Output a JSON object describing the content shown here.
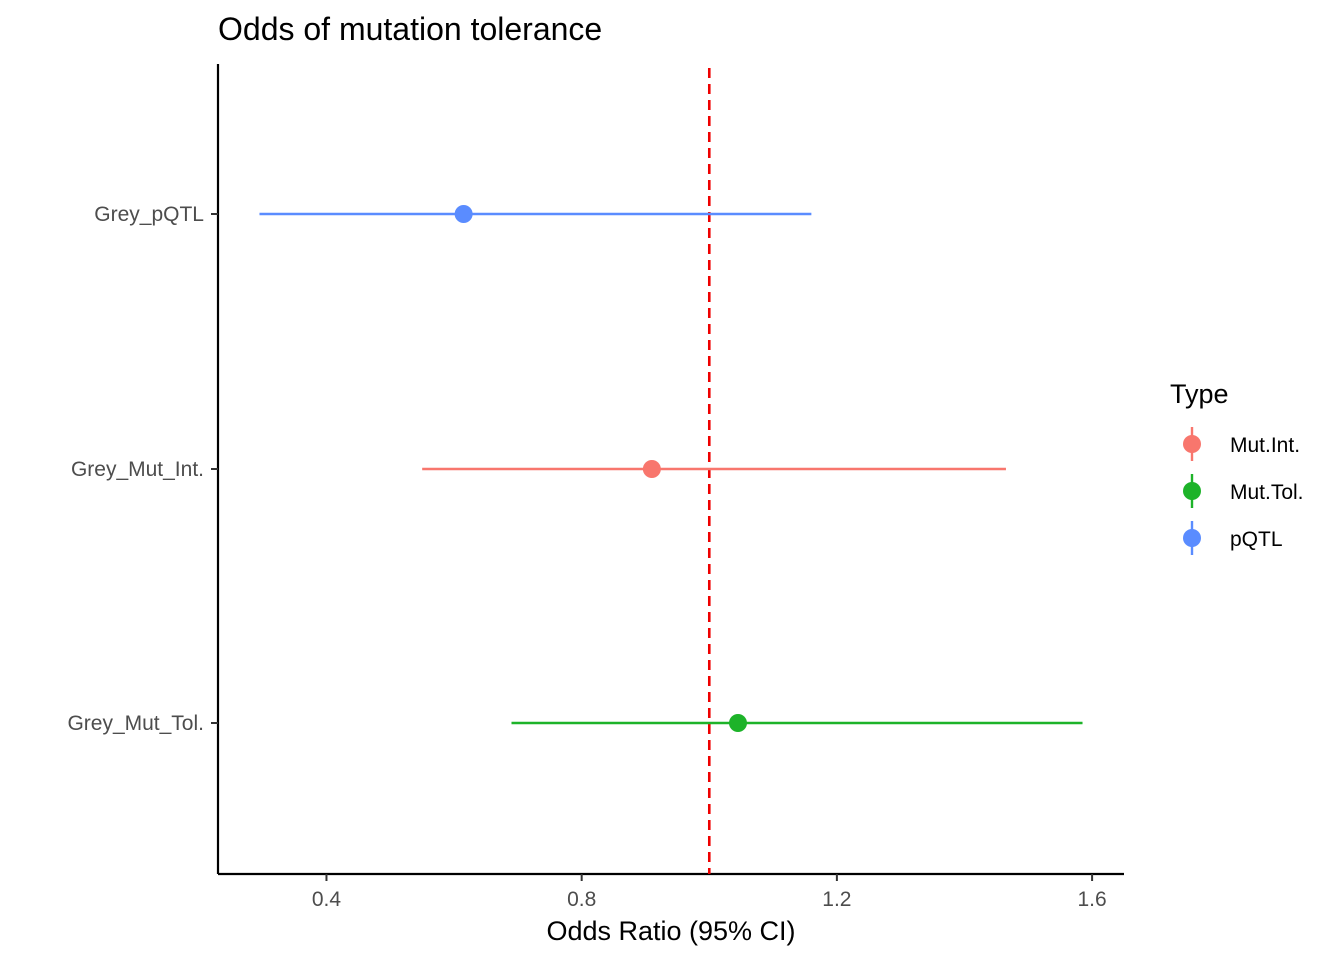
{
  "chart_data": {
    "type": "scatter",
    "title": "Odds of mutation tolerance",
    "xlabel": "Odds Ratio (95% CI)",
    "ylabel": "",
    "xlim": [
      0.23,
      1.65
    ],
    "x_ticks": [
      0.4,
      0.8,
      1.2,
      1.6
    ],
    "x_tick_labels": [
      "0.4",
      "0.8",
      "1.2",
      "1.6"
    ],
    "categories": [
      "Grey_pQTL",
      "Grey_Mut_Int.",
      "Grey_Mut_Tol."
    ],
    "reference_line": {
      "x": 1.0,
      "color": "#ee0000",
      "style": "dashed"
    },
    "grid": false,
    "legend": {
      "title": "Type",
      "position": "right",
      "entries": [
        {
          "label": "Mut.Int.",
          "color": "#f8766d"
        },
        {
          "label": "Mut.Tol.",
          "color": "#1db329"
        },
        {
          "label": "pQTL",
          "color": "#5a8cff"
        }
      ]
    },
    "series": [
      {
        "name": "pQTL",
        "category": "Grey_pQTL",
        "estimate": 0.615,
        "lower": 0.295,
        "upper": 1.16,
        "color": "#5a8cff"
      },
      {
        "name": "Mut.Int.",
        "category": "Grey_Mut_Int.",
        "estimate": 0.91,
        "lower": 0.55,
        "upper": 1.465,
        "color": "#f8766d"
      },
      {
        "name": "Mut.Tol.",
        "category": "Grey_Mut_Tol.",
        "estimate": 1.045,
        "lower": 0.69,
        "upper": 1.585,
        "color": "#1db329"
      }
    ]
  }
}
